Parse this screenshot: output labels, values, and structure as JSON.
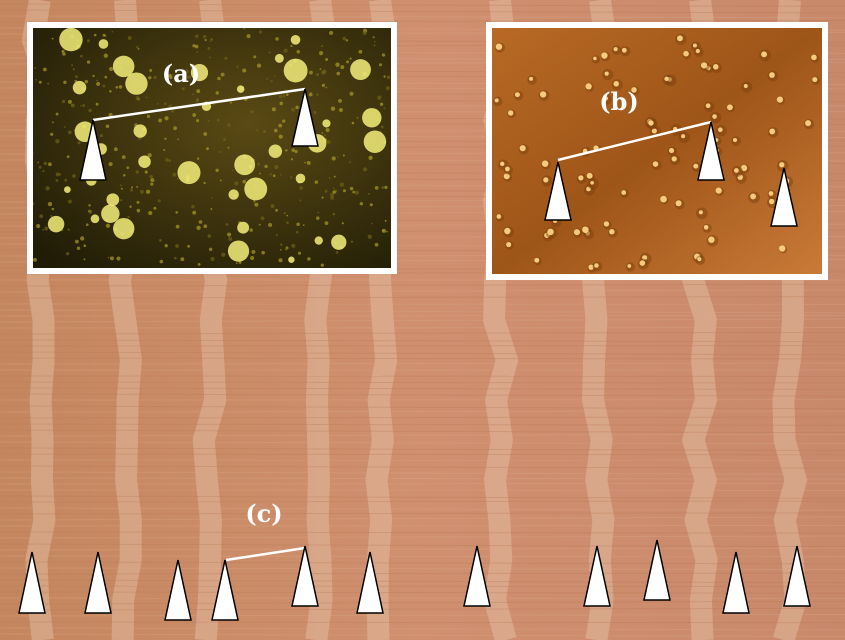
{
  "figure": {
    "panel_a": {
      "label": "(a)"
    },
    "panel_b": {
      "label": "(b)"
    },
    "panel_c": {
      "label": "(c)"
    },
    "marker_shape": "white-triangle-arrowhead",
    "marker_count_c": 11,
    "colors": {
      "wood_base": "#c98a63",
      "inset_a_base": "#2e2a0c",
      "inset_a_pore": "#f4ef7a",
      "inset_b_base": "#b0611f",
      "inset_b_pore": "#ffd98a",
      "marker_fill": "#ffffff",
      "marker_stroke": "#000000"
    }
  }
}
